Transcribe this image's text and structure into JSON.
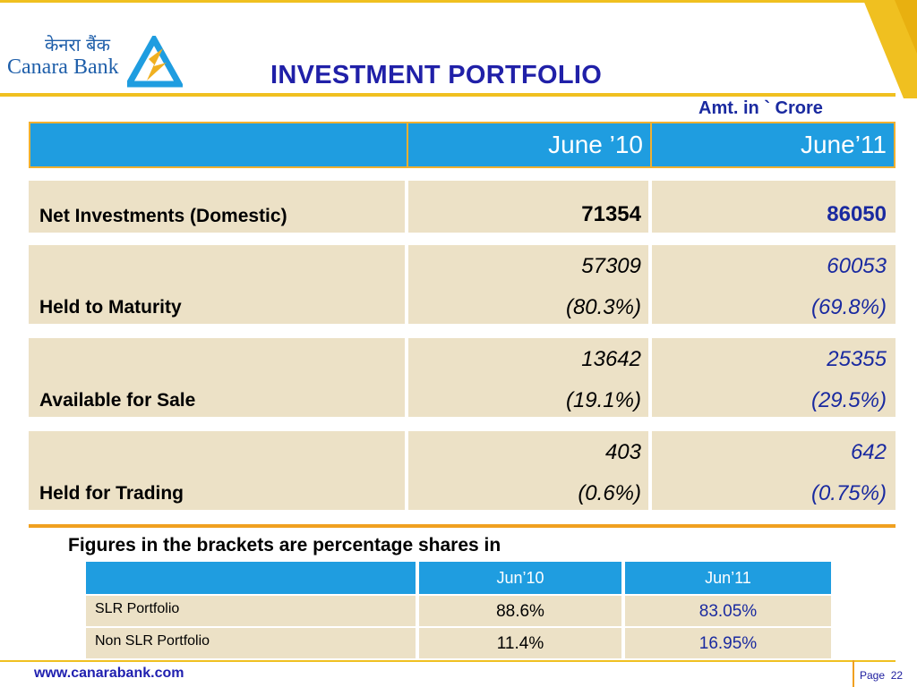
{
  "logo": {
    "hindi": "केनरा बैंक",
    "english": "Canara Bank"
  },
  "title": "INVESTMENT PORTFOLIO",
  "unit_note": "Amt. in ` Crore",
  "main_table": {
    "headers": [
      "",
      "June ’10",
      "June’11"
    ],
    "rows": [
      {
        "label": "Net Investments (Domestic)",
        "jun10": "71354",
        "jun11": "86050",
        "jun10_pct": "",
        "jun11_pct": ""
      },
      {
        "label": "Held to Maturity",
        "jun10": "57309",
        "jun11": "60053",
        "jun10_pct": "(80.3%)",
        "jun11_pct": "(69.8%)"
      },
      {
        "label": "Available for Sale",
        "jun10": "13642",
        "jun11": "25355",
        "jun10_pct": "(19.1%)",
        "jun11_pct": "(29.5%)"
      },
      {
        "label": "Held for Trading",
        "jun10": "403",
        "jun11": "642",
        "jun10_pct": "(0.6%)",
        "jun11_pct": "(0.75%)"
      }
    ]
  },
  "note": "Figures in the brackets are percentage shares in",
  "slr_table": {
    "headers": [
      "",
      "Jun’10",
      "Jun’11"
    ],
    "rows": [
      {
        "label": "SLR Portfolio",
        "jun10": "88.6%",
        "jun11": "83.05%"
      },
      {
        "label": "Non SLR Portfolio",
        "jun10": "11.4%",
        "jun11": "16.95%"
      }
    ]
  },
  "footer": {
    "url": "www.canarabank.com",
    "page_label": "Page",
    "page_number": "22"
  },
  "colors": {
    "header_blue": "#1f9de0",
    "accent_gold": "#f0c020",
    "row_beige": "#ece1c6",
    "value_blue": "#1a2aa0"
  }
}
